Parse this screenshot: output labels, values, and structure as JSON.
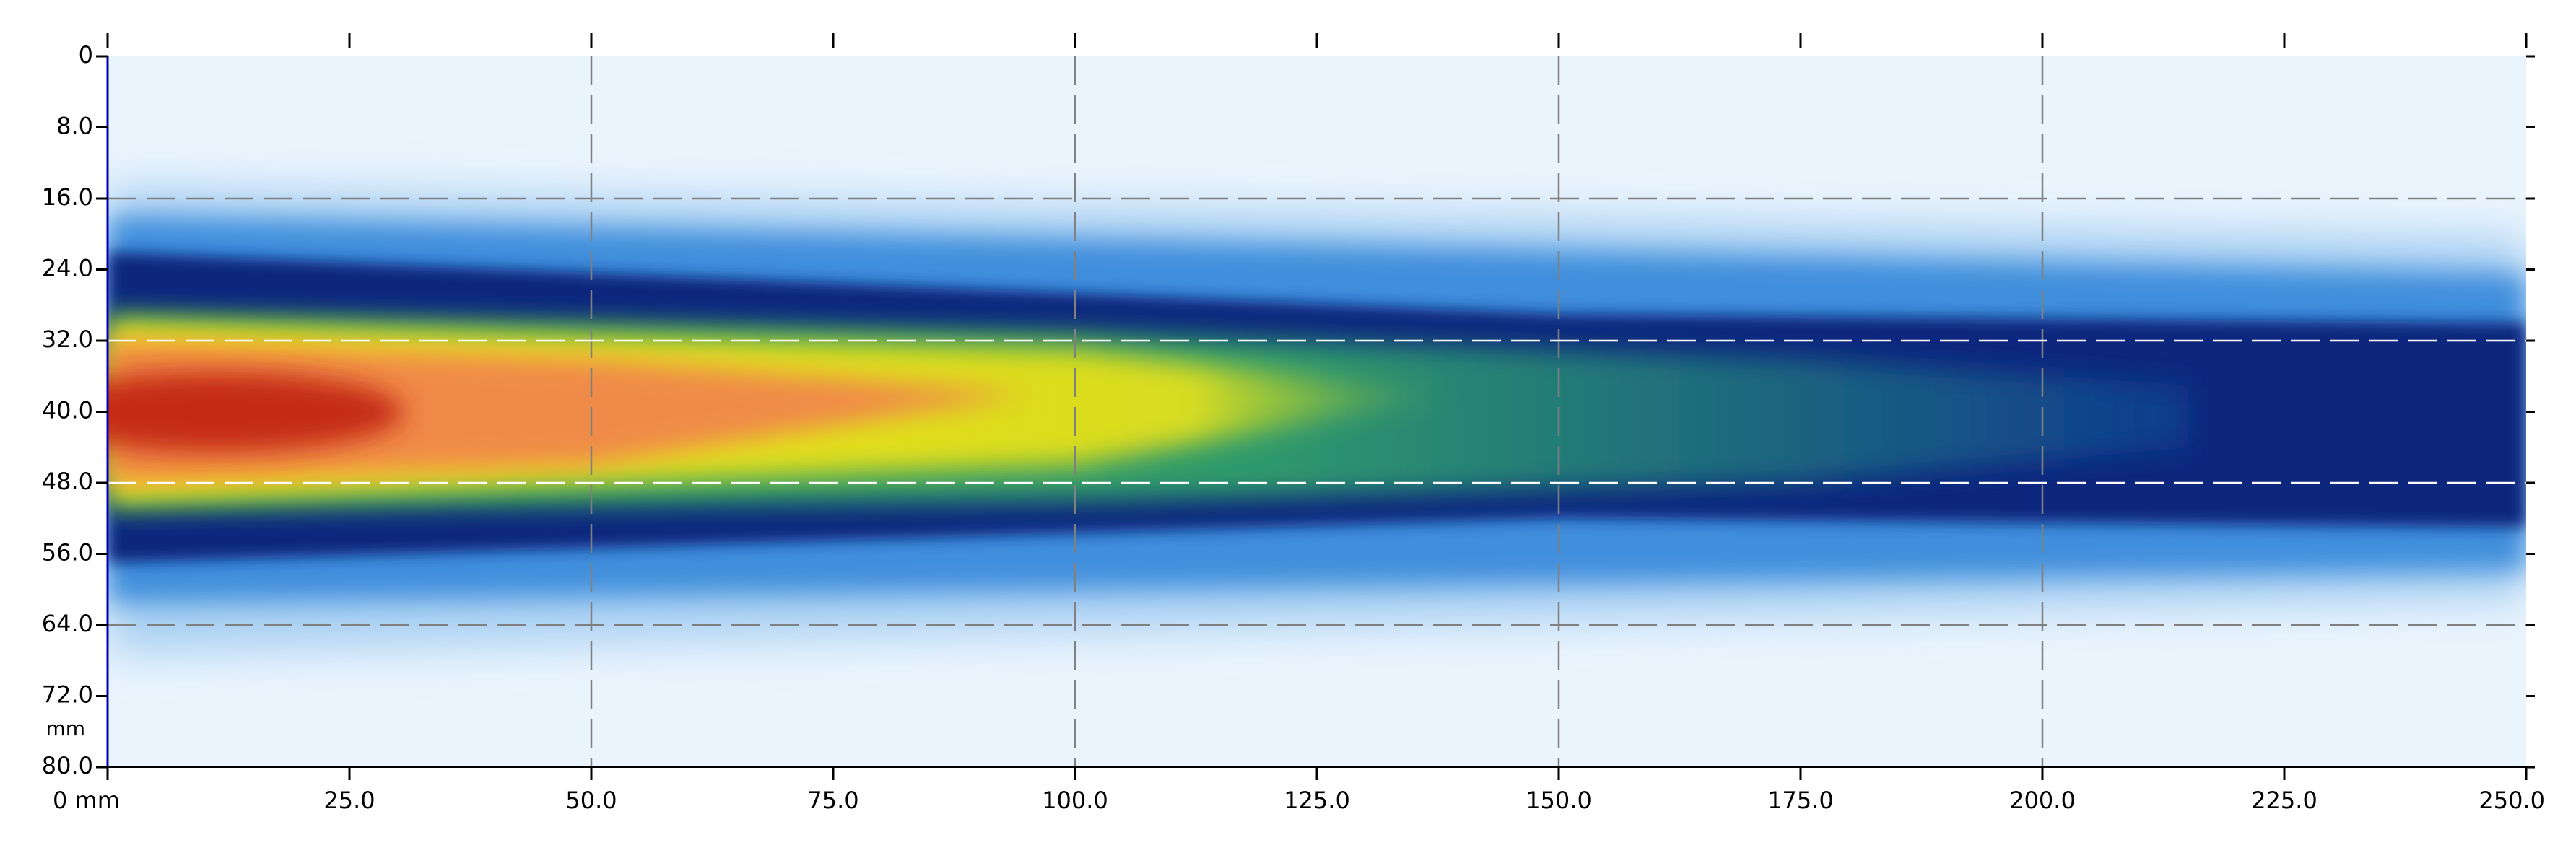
{
  "chart_data": {
    "type": "heatmap",
    "xlim": [
      0,
      250
    ],
    "ylim": [
      0,
      80
    ],
    "xticks": [
      {
        "value": 0,
        "label": "0 mm"
      },
      {
        "value": 25,
        "label": "25.0"
      },
      {
        "value": 50,
        "label": "50.0"
      },
      {
        "value": 75,
        "label": "75.0"
      },
      {
        "value": 100,
        "label": "100.0"
      },
      {
        "value": 125,
        "label": "125.0"
      },
      {
        "value": 150,
        "label": "150.0"
      },
      {
        "value": 175,
        "label": "175.0"
      },
      {
        "value": 200,
        "label": "200.0"
      },
      {
        "value": 225,
        "label": "225.0"
      },
      {
        "value": 250,
        "label": "250.0"
      }
    ],
    "yticks": [
      0,
      {
        "value": 8,
        "label": "8.0"
      },
      {
        "value": 16,
        "label": "16.0"
      },
      {
        "value": 24,
        "label": "24.0"
      },
      {
        "value": 32,
        "label": "32.0"
      },
      {
        "value": 40,
        "label": "40.0"
      },
      {
        "value": 48,
        "label": "48.0"
      },
      {
        "value": 56,
        "label": "56.0"
      },
      {
        "value": 64,
        "label": "64.0"
      },
      {
        "value": 72,
        "label": "72.0"
      },
      {
        "value": 80,
        "label": "80.0"
      }
    ],
    "y_unit": "mm",
    "y_inverted": true,
    "grid_lines": {
      "x": [
        {
          "value": 50,
          "color": "#808080"
        },
        {
          "value": 100,
          "color": "#808080"
        },
        {
          "value": 150,
          "color": "#808080"
        },
        {
          "value": 200,
          "color": "#808080"
        }
      ],
      "y": [
        {
          "value": 16,
          "color": "#808080"
        },
        {
          "value": 32,
          "color": "#ffffff"
        },
        {
          "value": 48,
          "color": "#ffffff"
        },
        {
          "value": 64,
          "color": "#808080"
        }
      ]
    }
  }
}
